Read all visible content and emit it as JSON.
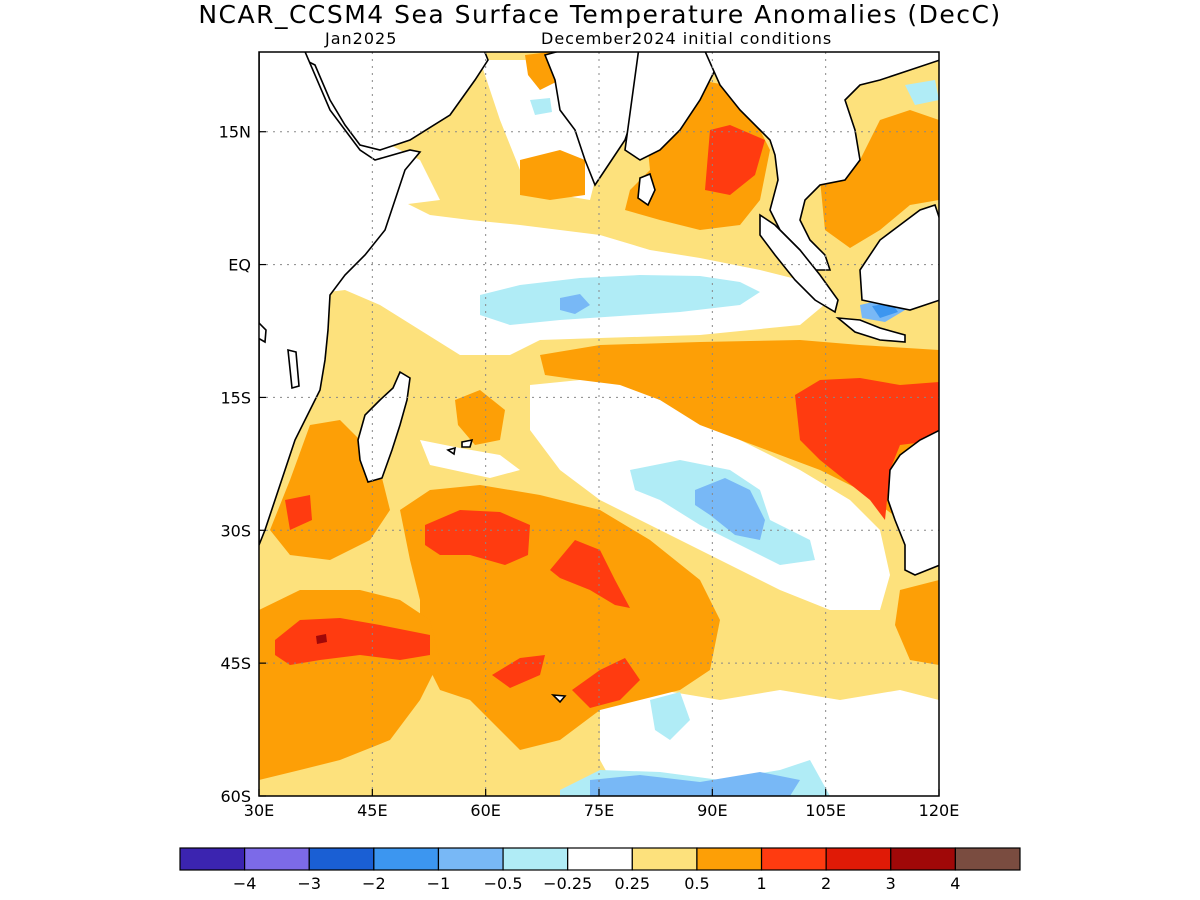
{
  "title": "NCAR_CCSM4 Sea Surface Temperature Anomalies (DecC)",
  "subtitle_left": "Jan2025",
  "subtitle_right": "December2024 initial conditions",
  "map": {
    "lon_range": [
      30,
      120
    ],
    "lat_range": [
      -60,
      24
    ],
    "x_ticks": [
      {
        "value": 30,
        "label": "30E"
      },
      {
        "value": 45,
        "label": "45E"
      },
      {
        "value": 60,
        "label": "60E"
      },
      {
        "value": 75,
        "label": "75E"
      },
      {
        "value": 90,
        "label": "90E"
      },
      {
        "value": 105,
        "label": "105E"
      },
      {
        "value": 120,
        "label": "120E"
      }
    ],
    "y_ticks": [
      {
        "value": 15,
        "label": "15N"
      },
      {
        "value": 0,
        "label": "EQ"
      },
      {
        "value": -15,
        "label": "15S"
      },
      {
        "value": -30,
        "label": "30S"
      },
      {
        "value": -45,
        "label": "45S"
      },
      {
        "value": -60,
        "label": "60S"
      }
    ],
    "grid": true
  },
  "colorbar": {
    "colors": [
      "#3b24b0",
      "#7c6ae8",
      "#1a5fd4",
      "#3c96f0",
      "#78b8f6",
      "#b0ecf6",
      "#ffffff",
      "#fde17c",
      "#fd9f06",
      "#ff3b10",
      "#e01a06",
      "#a00808",
      "#7a4c40"
    ],
    "labels": [
      "−4",
      "−3",
      "−2",
      "−1",
      "−0.5",
      "−0.25",
      "0.25",
      "0.5",
      "1",
      "2",
      "3",
      "4"
    ]
  }
}
